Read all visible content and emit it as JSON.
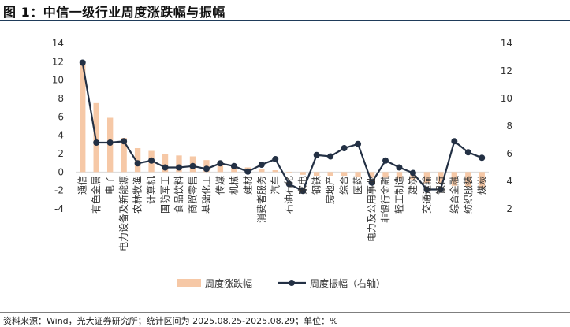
{
  "header": {
    "title": "图 1：中信一级行业周度涨跌幅与振幅"
  },
  "footer": {
    "source": "资料来源：Wind，光大证券研究所；统计区间为 2025.08.25-2025.08.29；单位：%"
  },
  "colors": {
    "bar": "#f6c8a6",
    "line": "#233044",
    "title_rule": "#1f3b5a"
  },
  "chart_data": {
    "type": "bar",
    "categories": [
      "通信",
      "有色金属",
      "电子",
      "电力设备及新能源",
      "农林牧渔",
      "计算机",
      "国防军工",
      "食品饮料",
      "商贸零售",
      "基础化工",
      "传媒",
      "机械",
      "建材",
      "消费者服务",
      "汽车",
      "石油石化",
      "家电",
      "钢铁",
      "房地产",
      "综合",
      "医药",
      "电力及公用事业",
      "非银行金融",
      "轻工制造",
      "建筑",
      "交通运输",
      "银行",
      "综合金融",
      "纺织服装",
      "煤炭"
    ],
    "series": [
      {
        "name": "周度涨跌幅",
        "type": "bar",
        "axis": "left",
        "values": [
          12.1,
          7.5,
          5.9,
          3.7,
          2.6,
          2.3,
          2.0,
          1.8,
          1.7,
          1.3,
          0.9,
          0.8,
          0.5,
          0.3,
          0.2,
          -0.1,
          -0.3,
          -0.4,
          -0.4,
          -0.4,
          -0.5,
          -0.6,
          -0.6,
          -0.7,
          -0.8,
          -1.2,
          -1.3,
          -1.5,
          -1.6,
          -1.8
        ]
      },
      {
        "name": "周度振幅（右轴）",
        "type": "line",
        "axis": "right",
        "values": [
          12.6,
          6.8,
          6.8,
          6.9,
          5.3,
          5.5,
          5.0,
          5.0,
          5.1,
          4.9,
          5.3,
          5.1,
          4.7,
          5.2,
          5.6,
          3.8,
          3.3,
          5.9,
          5.8,
          6.4,
          6.7,
          3.9,
          5.5,
          5.0,
          4.6,
          3.4,
          3.4,
          6.9,
          6.1,
          5.7
        ]
      }
    ],
    "yleft": {
      "min": -4,
      "max": 14,
      "ticks": [
        "-4",
        "-2",
        "0",
        "2",
        "4",
        "6",
        "8",
        "10",
        "12",
        "14"
      ]
    },
    "yright": {
      "min": 2,
      "max": 14,
      "ticks": [
        "2",
        "4",
        "6",
        "8",
        "10",
        "12",
        "14"
      ]
    },
    "grid": false,
    "legend": {
      "placement": "bottom",
      "labels": [
        "周度涨跌幅",
        "周度振幅（右轴）"
      ]
    }
  }
}
